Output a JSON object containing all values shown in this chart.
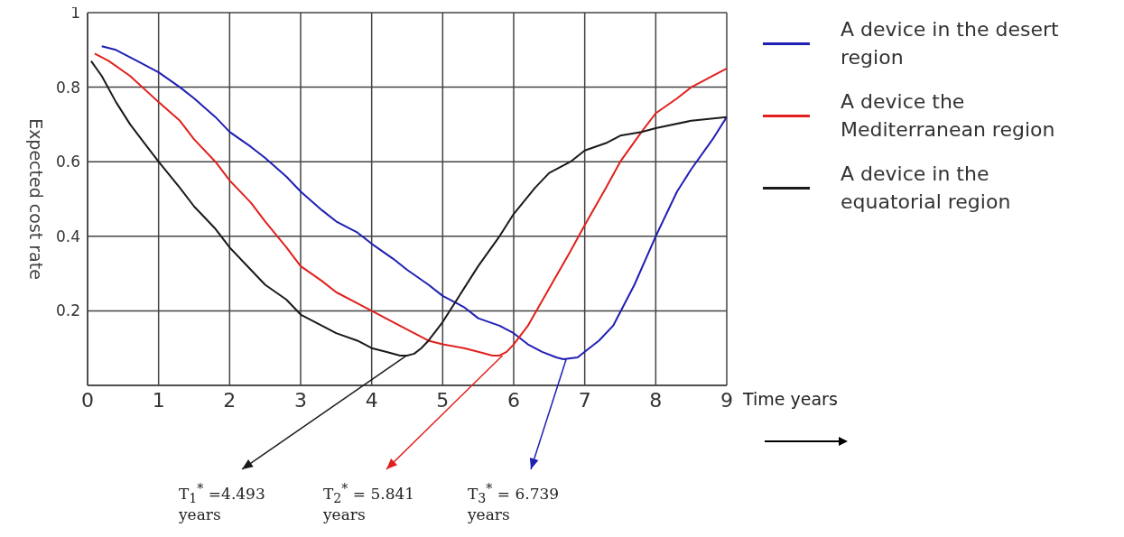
{
  "chart_data": {
    "type": "line",
    "xlabel": "Time years",
    "ylabel": "Expected cost rate",
    "xlim": [
      0,
      9
    ],
    "xticks": [
      0,
      1,
      2,
      3,
      4,
      5,
      6,
      7,
      8,
      9
    ],
    "ylim": [
      0,
      1
    ],
    "yticks": [
      {
        "value": 0,
        "label": null
      },
      0.2,
      0.4,
      0.6,
      0.8,
      1
    ],
    "grid": true,
    "legend": "right",
    "marker": "none",
    "line_style": "solid",
    "series": [
      {
        "name": "A device in the desert region",
        "color": "#1f1fb4",
        "x": [
          0.2,
          0.4,
          0.7,
          1,
          1.3,
          1.5,
          1.8,
          2,
          2.3,
          2.5,
          2.8,
          3,
          3.3,
          3.5,
          3.8,
          4,
          4.3,
          4.5,
          4.8,
          5,
          5.3,
          5.5,
          5.8,
          6,
          6.2,
          6.4,
          6.6,
          6.7,
          6.9,
          7,
          7.2,
          7.4,
          7.7,
          8,
          8.3,
          8.5,
          8.8,
          9
        ],
        "values": [
          0.91,
          0.9,
          0.87,
          0.84,
          0.8,
          0.77,
          0.72,
          0.68,
          0.64,
          0.61,
          0.56,
          0.52,
          0.47,
          0.44,
          0.41,
          0.38,
          0.34,
          0.31,
          0.27,
          0.24,
          0.21,
          0.18,
          0.16,
          0.14,
          0.11,
          0.09,
          0.075,
          0.07,
          0.075,
          0.09,
          0.12,
          0.16,
          0.27,
          0.4,
          0.52,
          0.58,
          0.66,
          0.72
        ]
      },
      {
        "name": "A device the Mediterranean region",
        "color": "#e0201d",
        "x": [
          0.1,
          0.3,
          0.6,
          1,
          1.3,
          1.5,
          1.8,
          2,
          2.3,
          2.5,
          2.8,
          3,
          3.3,
          3.5,
          3.8,
          4,
          4.3,
          4.5,
          4.8,
          5,
          5.3,
          5.5,
          5.7,
          5.8,
          5.9,
          6,
          6.2,
          6.5,
          6.8,
          7,
          7.3,
          7.5,
          7.8,
          8,
          8.3,
          8.5,
          8.8,
          9
        ],
        "values": [
          0.89,
          0.87,
          0.83,
          0.76,
          0.71,
          0.66,
          0.6,
          0.55,
          0.49,
          0.44,
          0.37,
          0.32,
          0.28,
          0.25,
          0.22,
          0.2,
          0.17,
          0.15,
          0.12,
          0.11,
          0.1,
          0.09,
          0.08,
          0.08,
          0.09,
          0.11,
          0.16,
          0.26,
          0.36,
          0.43,
          0.53,
          0.6,
          0.68,
          0.73,
          0.77,
          0.8,
          0.83,
          0.85
        ]
      },
      {
        "name": "A device in the equatorial region",
        "color": "#1a1a1a",
        "x": [
          0.05,
          0.2,
          0.4,
          0.6,
          0.8,
          1,
          1.3,
          1.5,
          1.8,
          2,
          2.3,
          2.5,
          2.8,
          3,
          3.3,
          3.5,
          3.8,
          4,
          4.2,
          4.4,
          4.5,
          4.6,
          4.7,
          4.8,
          5,
          5.3,
          5.5,
          5.8,
          6,
          6.3,
          6.5,
          6.8,
          7,
          7.3,
          7.5,
          7.8,
          8,
          8.5,
          9
        ],
        "values": [
          0.87,
          0.83,
          0.76,
          0.7,
          0.65,
          0.6,
          0.53,
          0.48,
          0.42,
          0.37,
          0.31,
          0.27,
          0.23,
          0.19,
          0.16,
          0.14,
          0.12,
          0.1,
          0.09,
          0.08,
          0.08,
          0.085,
          0.1,
          0.12,
          0.17,
          0.26,
          0.32,
          0.4,
          0.46,
          0.53,
          0.57,
          0.6,
          0.63,
          0.65,
          0.67,
          0.68,
          0.69,
          0.71,
          0.72
        ]
      }
    ],
    "annotations": [
      {
        "text": "T$_{1}$$^{*}$ =4.493 years",
        "x": 4.493,
        "y": 0.08
      },
      {
        "text": "T$_{2}$$^{*}$ = 5.841 years",
        "x": 5.841,
        "y": 0.08
      },
      {
        "text": "T$_{3}$$^{*}$ = 6.739 years",
        "x": 6.739,
        "y": 0.07
      }
    ]
  }
}
